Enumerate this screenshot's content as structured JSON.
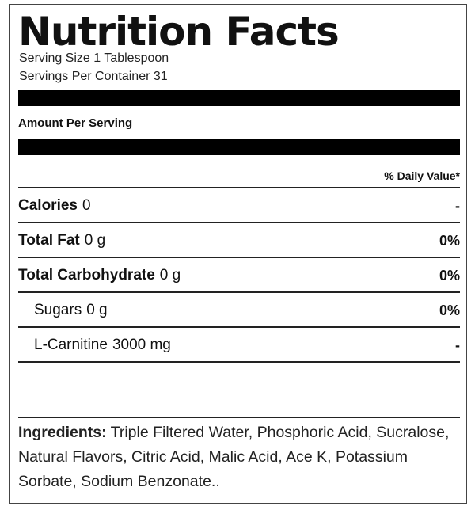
{
  "title": "Nutrition Facts",
  "serving_size": "Serving Size 1 Tablespoon",
  "servings_per_container": "Servings Per Container 31",
  "amount_per_serving": "Amount Per Serving",
  "daily_value_header": "% Daily Value*",
  "nutrients": [
    {
      "name": "Calories",
      "amount": "0",
      "dv": "-",
      "sub": false
    },
    {
      "name": "Total Fat",
      "amount": "0 g",
      "dv": "0%",
      "sub": false
    },
    {
      "name": "Total Carbohydrate",
      "amount": "0 g",
      "dv": "0%",
      "sub": false
    },
    {
      "name": "Sugars",
      "amount": "0 g",
      "dv": "0%",
      "sub": true
    },
    {
      "name": "L-Carnitine",
      "amount": "3000 mg",
      "dv": "-",
      "sub": true
    }
  ],
  "ingredients": {
    "label": "Ingredients:",
    "text": "Triple Filtered Water, Phosphoric Acid, Sucralose, Natural Flavors, Citric Acid, Malic Acid, Ace K, Potassium Sorbate, Sodium Benzonate.."
  }
}
